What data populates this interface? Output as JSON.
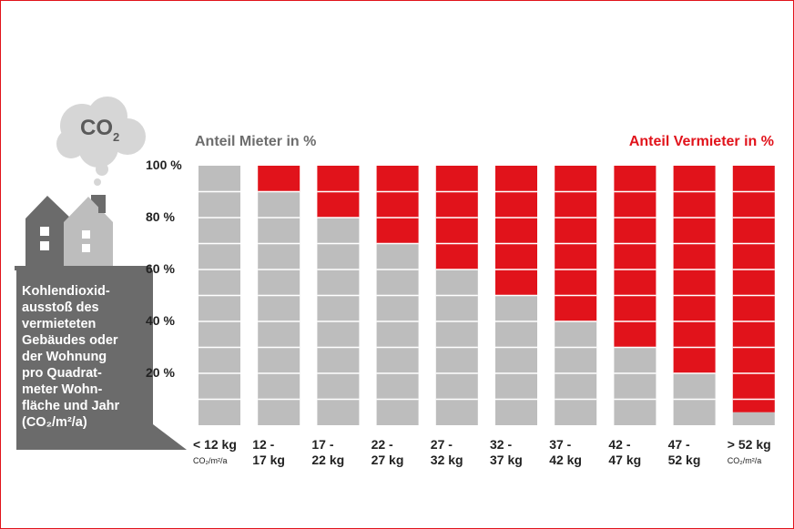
{
  "header": {
    "legend_mieter": "Anteil Mieter in %",
    "legend_vermieter": "Anteil Vermieter in %"
  },
  "icon": {
    "cloud_label": "CO",
    "cloud_sub": "2",
    "name": "house-with-co2-cloud-icon"
  },
  "info_box": {
    "lines": [
      "Kohlendioxid-",
      "ausstoß des",
      "vermieteten",
      "Gebäudes oder",
      "der Wohnung",
      "pro Quadrat-",
      "meter Wohn-",
      "fläche und Jahr",
      "(CO₂/m²/a)"
    ]
  },
  "colors": {
    "mieter": "#bdbdbd",
    "vermieter": "#e1131b",
    "frame": "#e1131b",
    "dark_grey": "#6b6b6b"
  },
  "chart_data": {
    "type": "bar",
    "stacked": true,
    "percent": true,
    "categories": [
      [
        "< 12 kg",
        ""
      ],
      [
        "12 -",
        "17 kg"
      ],
      [
        "17 -",
        "22 kg"
      ],
      [
        "22 -",
        "27 kg"
      ],
      [
        "27 -",
        "32 kg"
      ],
      [
        "32 -",
        "37 kg"
      ],
      [
        "37 -",
        "42 kg"
      ],
      [
        "42 -",
        "47 kg"
      ],
      [
        "47 -",
        "52 kg"
      ],
      [
        "> 52 kg",
        ""
      ]
    ],
    "category_units": [
      "CO₂/m²/a",
      "",
      "",
      "",
      "",
      "",
      "",
      "",
      "",
      "CO₂/m²/a"
    ],
    "series": [
      {
        "name": "Anteil Mieter in %",
        "values": [
          100,
          90,
          80,
          70,
          60,
          50,
          40,
          30,
          20,
          5
        ]
      },
      {
        "name": "Anteil Vermieter in %",
        "values": [
          0,
          10,
          20,
          30,
          40,
          50,
          60,
          70,
          80,
          95
        ]
      }
    ],
    "yticks": [
      "100 %",
      "80 %",
      "60 %",
      "40 %",
      "20 %"
    ],
    "ytick_values": [
      100,
      80,
      60,
      40,
      20
    ],
    "ylim": [
      0,
      100
    ],
    "grid": true,
    "legend": "top"
  }
}
